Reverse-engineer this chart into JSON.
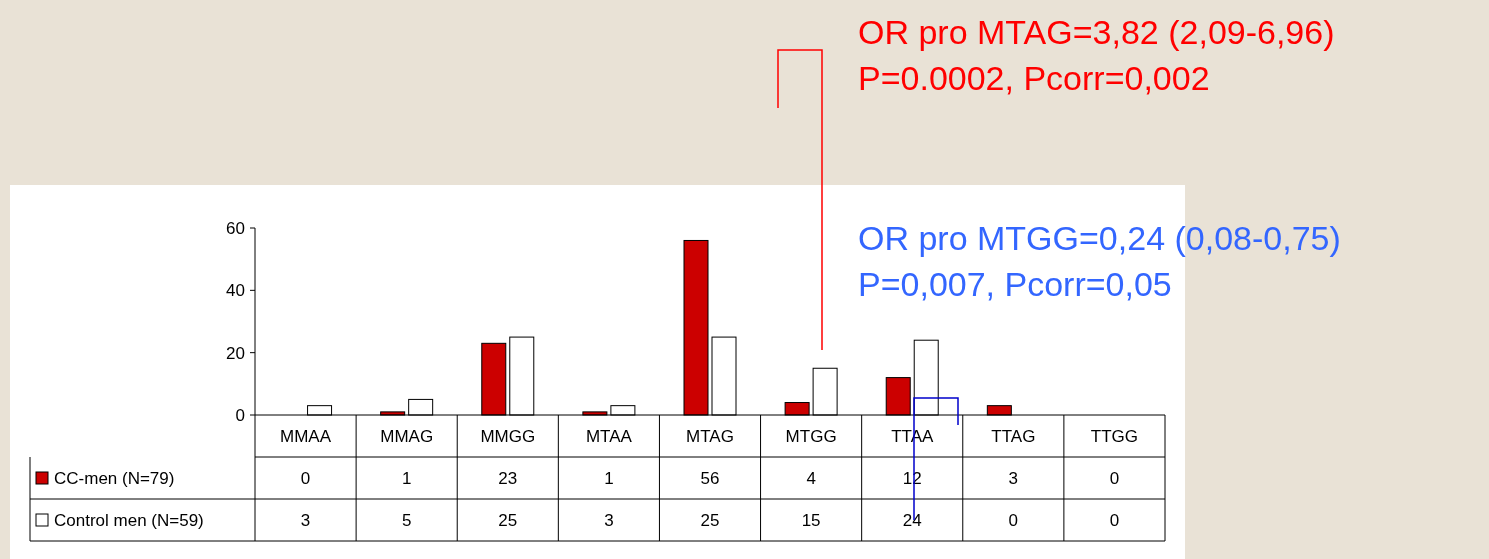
{
  "chart_data": {
    "type": "bar",
    "categories": [
      "MMAA",
      "MMAG",
      "MMGG",
      "MTAA",
      "MTAG",
      "MTGG",
      "TTAA",
      "TTAG",
      "TTGG"
    ],
    "series": [
      {
        "name": "CC-men (N=79)",
        "color": "#cc0000",
        "values": [
          0,
          1,
          23,
          1,
          56,
          4,
          12,
          3,
          0
        ]
      },
      {
        "name": "Control men (N=59)",
        "color": "#ffffff",
        "values": [
          3,
          5,
          25,
          3,
          25,
          15,
          24,
          0,
          0
        ]
      }
    ],
    "ylim": [
      0,
      60
    ],
    "yticks": [
      0,
      20,
      40,
      60
    ],
    "data_labels": true,
    "legend": "bottom left",
    "grid": false,
    "annotations": [
      "OR pro MTAG=3,82 (2,09-6,96)\nP=0.0002, Pcorr=0,002",
      "OR pro MTGG=0,24 (0,08-0,75)\nP=0,007, Pcorr=0,05"
    ]
  }
}
